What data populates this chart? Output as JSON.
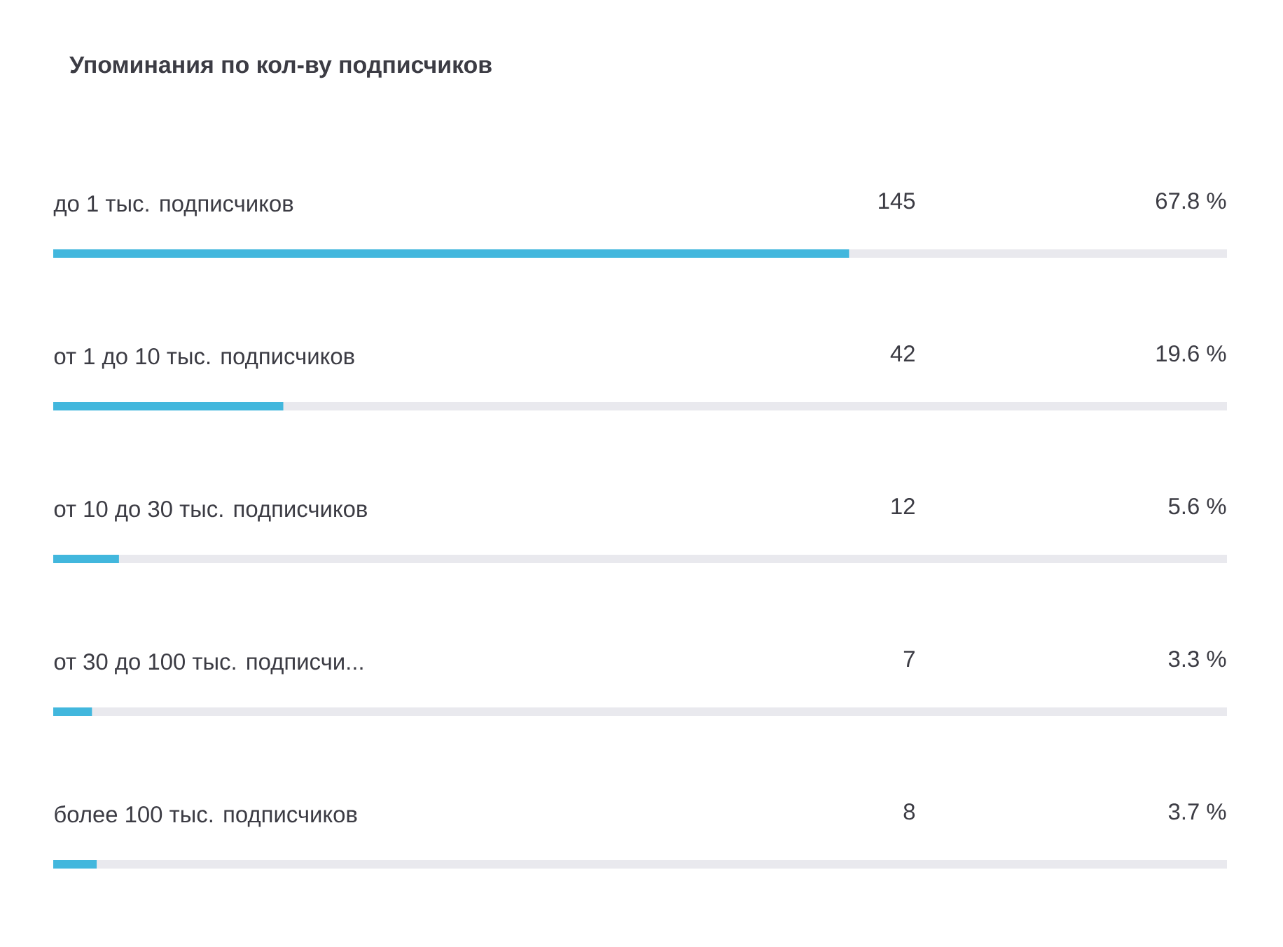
{
  "chart_data": {
    "type": "bar",
    "orientation": "horizontal",
    "title": "Упоминания по кол-ву подписчиков",
    "categories": [
      "до 1 тыс. подписчиков",
      "от 1 до 10 тыс. подписчиков",
      "от 10 до 30 тыс. подписчиков",
      "от 30 до 100 тыс. подписчи...",
      "более 100 тыс. подписчиков"
    ],
    "series": [
      {
        "color": "#42b7dd",
        "values": [
          67.8,
          19.6,
          5.6,
          3.3,
          3.7
        ],
        "value_labels": [
          "67.8 %",
          "19.6 %",
          "5.6 %",
          "3.3 %",
          "3.7 %"
        ]
      }
    ],
    "xlim": [
      0,
      100
    ],
    "annotations": [
      "145",
      "42",
      "12",
      "7",
      "8"
    ]
  }
}
